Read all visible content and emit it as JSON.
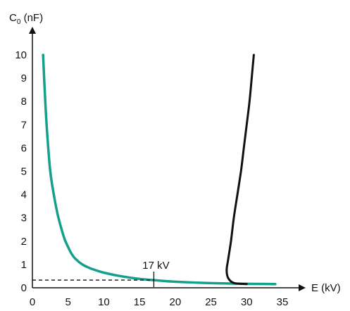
{
  "chart_data": {
    "type": "line",
    "ylabel": {
      "base": "C",
      "sub": "0",
      "unit": " (nF)"
    },
    "xlabel": "E (kV)",
    "xlim": [
      0,
      35
    ],
    "ylim": [
      0,
      10
    ],
    "x_ticks": [
      "0",
      "5",
      "10",
      "15",
      "20",
      "25",
      "30",
      "35"
    ],
    "y_ticks": [
      "0",
      "1",
      "2",
      "3",
      "4",
      "5",
      "6",
      "7",
      "8",
      "9",
      "10"
    ],
    "grid": false,
    "series": [
      {
        "color": "#14a08a",
        "points": [
          [
            1.5,
            10
          ],
          [
            1.8,
            8
          ],
          [
            2.1,
            6.5
          ],
          [
            2.5,
            5
          ],
          [
            3,
            4
          ],
          [
            3.5,
            3.2
          ],
          [
            4,
            2.6
          ],
          [
            4.5,
            2.1
          ],
          [
            5,
            1.75
          ],
          [
            5.5,
            1.45
          ],
          [
            6,
            1.25
          ],
          [
            7,
            1
          ],
          [
            8,
            0.85
          ],
          [
            9,
            0.74
          ],
          [
            10,
            0.65
          ],
          [
            12,
            0.52
          ],
          [
            15,
            0.38
          ],
          [
            17,
            0.33
          ],
          [
            20,
            0.26
          ],
          [
            25,
            0.2
          ],
          [
            30,
            0.17
          ],
          [
            34,
            0.16
          ]
        ]
      },
      {
        "color": "#111111",
        "points": [
          [
            31.0,
            10
          ],
          [
            30.7,
            9
          ],
          [
            30.4,
            8
          ],
          [
            30.0,
            7
          ],
          [
            29.6,
            6
          ],
          [
            29.2,
            5
          ],
          [
            28.7,
            4
          ],
          [
            28.2,
            3
          ],
          [
            27.8,
            2
          ],
          [
            27.4,
            1.2
          ],
          [
            27.2,
            0.8
          ],
          [
            27.3,
            0.5
          ],
          [
            27.7,
            0.3
          ],
          [
            28.3,
            0.2
          ],
          [
            29.2,
            0.17
          ],
          [
            30,
            0.16
          ]
        ]
      }
    ],
    "annotations": [
      {
        "text": "17 kV",
        "x": 17,
        "y": 0.33
      }
    ]
  }
}
